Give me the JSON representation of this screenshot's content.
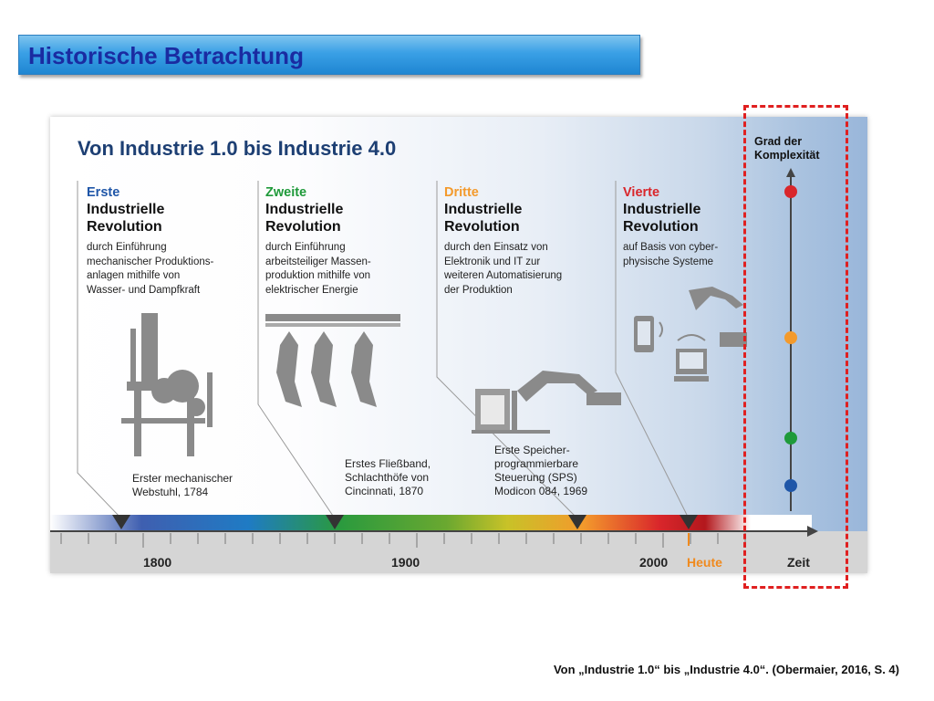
{
  "slide": {
    "title": "Historische Betrachtung",
    "caption": "Von „Industrie 1.0“ bis „Industrie 4.0“. (Obermaier, 2016, S. 4)"
  },
  "figure": {
    "title": "Von Industrie 1.0 bis Industrie 4.0",
    "revolutions": [
      {
        "ordinal": "Erste",
        "ordinal_color": "#1f56a8",
        "name": "Industrielle\nRevolution",
        "description": "durch Einführung\nmechanischer Produktions-\nanlagen mithilfe von\nWasser- und Dampfkraft"
      },
      {
        "ordinal": "Zweite",
        "ordinal_color": "#1f9a3a",
        "name": "Industrielle\nRevolution",
        "description": "durch Einführung\narbeitsteiliger Massen-\nproduktion mithilfe von\nelektrischer Energie"
      },
      {
        "ordinal": "Dritte",
        "ordinal_color": "#f39a2c",
        "name": "Industrielle\nRevolution",
        "description": "durch den Einsatz von\nElektronik und IT zur\nweiteren Automatisierung\nder Produktion"
      },
      {
        "ordinal": "Vierte",
        "ordinal_color": "#d9262b",
        "name": "Industrielle\nRevolution",
        "description": "auf Basis von cyber-\nphysische Systeme"
      }
    ],
    "milestones": [
      {
        "text": "Erster mechanischer\nWebstuhl, 1784"
      },
      {
        "text": "Erstes Fließband,\nSchlachthöfe von\nCincinnati, 1870"
      },
      {
        "text": "Erste Speicher-\nprogrammierbare\nSteuerung (SPS)\nModicon 084, 1969"
      }
    ],
    "axis": {
      "years": [
        "1800",
        "1900",
        "2000"
      ],
      "today_label": "Heute",
      "axis_label": "Zeit"
    },
    "complexity": {
      "label": "Grad der\nKomplexität",
      "levels": [
        {
          "revolution": "Vierte",
          "color": "#d9262b"
        },
        {
          "revolution": "Dritte",
          "color": "#f39a2c"
        },
        {
          "revolution": "Zweite",
          "color": "#1f9a3a"
        },
        {
          "revolution": "Erste",
          "color": "#1f56a8"
        }
      ]
    }
  }
}
